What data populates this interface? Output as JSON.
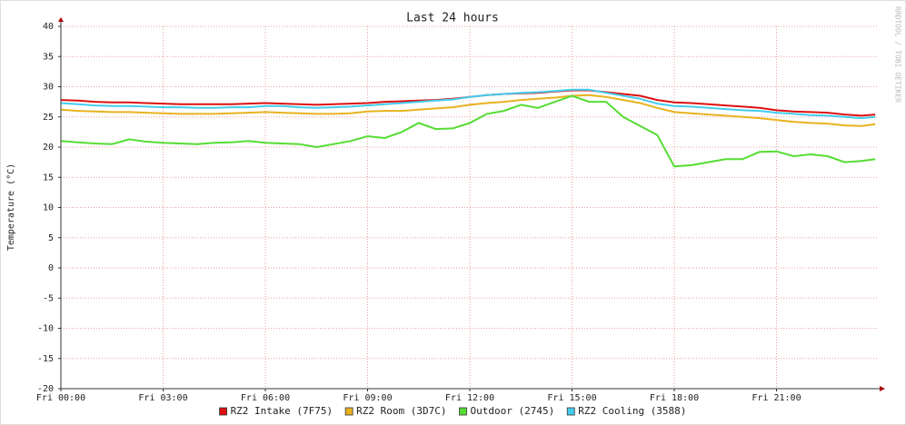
{
  "chart_data": {
    "type": "line",
    "title": "Last 24 hours",
    "y_label": "Temperature (°C)",
    "watermark": "RRDTOOL / TOBI OETIKER",
    "x": [
      0,
      0.5,
      1,
      1.5,
      2,
      2.5,
      3,
      3.5,
      4,
      4.5,
      5,
      5.5,
      6,
      6.5,
      7,
      7.5,
      8,
      8.5,
      9,
      9.5,
      10,
      10.5,
      11,
      11.5,
      12,
      12.5,
      13,
      13.5,
      14,
      14.5,
      15,
      15.5,
      16,
      16.5,
      17,
      17.5,
      18,
      18.5,
      19,
      19.5,
      20,
      20.5,
      21,
      21.5,
      22,
      22.5,
      23,
      23.5,
      23.9
    ],
    "xlim": [
      0,
      24
    ],
    "xticks": [
      {
        "value": 0,
        "label": "Fri 00:00"
      },
      {
        "value": 3,
        "label": "Fri 03:00"
      },
      {
        "value": 6,
        "label": "Fri 06:00"
      },
      {
        "value": 9,
        "label": "Fri 09:00"
      },
      {
        "value": 12,
        "label": "Fri 12:00"
      },
      {
        "value": 15,
        "label": "Fri 15:00"
      },
      {
        "value": 18,
        "label": "Fri 18:00"
      },
      {
        "value": 21,
        "label": "Fri 21:00"
      }
    ],
    "ylim": [
      -20,
      40
    ],
    "yticks": [
      -20,
      -15,
      -10,
      -5,
      0,
      5,
      10,
      15,
      20,
      25,
      30,
      35,
      40
    ],
    "grid": true,
    "legend": "bottom",
    "series": [
      {
        "name": "RZ2 Intake (7F75)",
        "color": "#dd1111",
        "values": [
          27.8,
          27.7,
          27.5,
          27.4,
          27.4,
          27.3,
          27.2,
          27.1,
          27.1,
          27.1,
          27.1,
          27.2,
          27.3,
          27.2,
          27.1,
          27.0,
          27.1,
          27.2,
          27.3,
          27.5,
          27.6,
          27.7,
          27.8,
          28.0,
          28.3,
          28.6,
          28.8,
          28.9,
          29.0,
          29.2,
          29.4,
          29.4,
          29.1,
          28.8,
          28.5,
          27.8,
          27.4,
          27.3,
          27.1,
          26.9,
          26.7,
          26.5,
          26.1,
          25.9,
          25.8,
          25.7,
          25.4,
          25.2,
          25.4
        ]
      },
      {
        "name": "RZ2 Room (3D7C)",
        "color": "#e8b220",
        "values": [
          26.2,
          26.0,
          25.9,
          25.8,
          25.8,
          25.7,
          25.6,
          25.5,
          25.5,
          25.5,
          25.6,
          25.7,
          25.8,
          25.7,
          25.6,
          25.5,
          25.5,
          25.6,
          25.9,
          26.0,
          26.0,
          26.2,
          26.4,
          26.6,
          27.0,
          27.3,
          27.5,
          27.8,
          28.0,
          28.2,
          28.5,
          28.6,
          28.3,
          27.8,
          27.3,
          26.5,
          25.8,
          25.6,
          25.4,
          25.2,
          25.0,
          24.8,
          24.5,
          24.2,
          24.0,
          23.9,
          23.6,
          23.5,
          23.8
        ]
      },
      {
        "name": "Outdoor (2745)",
        "color": "#55dd33",
        "values": [
          21.0,
          20.8,
          20.6,
          20.5,
          21.3,
          20.9,
          20.7,
          20.6,
          20.5,
          20.7,
          20.8,
          21.0,
          20.7,
          20.6,
          20.5,
          20.0,
          20.5,
          21.0,
          21.8,
          21.5,
          22.5,
          24.0,
          23.0,
          23.1,
          24.0,
          25.5,
          26.0,
          27.0,
          26.5,
          27.5,
          28.5,
          27.5,
          27.5,
          25.0,
          23.5,
          22.0,
          16.8,
          17.0,
          17.5,
          18.0,
          18.0,
          19.2,
          19.3,
          18.5,
          18.8,
          18.5,
          17.5,
          17.7,
          18.0
        ]
      },
      {
        "name": "RZ2 Cooling (3588)",
        "color": "#44ccee",
        "values": [
          27.3,
          27.1,
          26.9,
          26.8,
          26.8,
          26.7,
          26.6,
          26.6,
          26.5,
          26.5,
          26.6,
          26.6,
          26.8,
          26.8,
          26.6,
          26.5,
          26.6,
          26.7,
          26.9,
          27.1,
          27.3,
          27.5,
          27.7,
          27.9,
          28.3,
          28.6,
          28.8,
          29.0,
          29.1,
          29.3,
          29.5,
          29.5,
          29.0,
          28.5,
          28.0,
          27.2,
          26.8,
          26.7,
          26.5,
          26.3,
          26.1,
          26.0,
          25.7,
          25.5,
          25.3,
          25.2,
          25.0,
          24.8,
          25.0
        ]
      }
    ]
  }
}
